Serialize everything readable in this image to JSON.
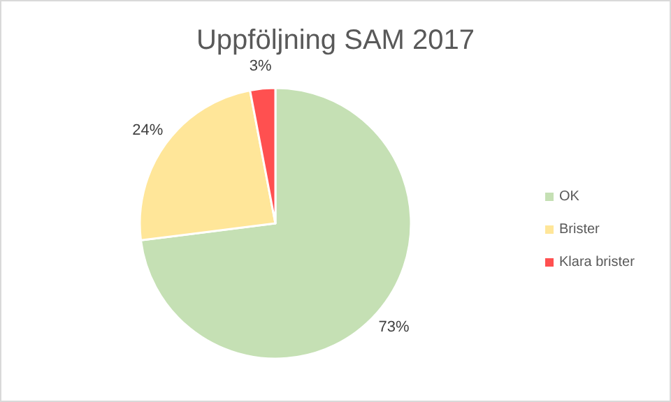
{
  "chart_data": {
    "type": "pie",
    "title": "Uppföljning SAM 2017",
    "categories": [
      "OK",
      "Brister",
      "Klara brister"
    ],
    "values": [
      73,
      24,
      3
    ],
    "colors": [
      "#c5e0b4",
      "#ffe699",
      "#ff5050"
    ],
    "value_labels": [
      "73%",
      "24%",
      "3%"
    ],
    "legend": "right"
  }
}
